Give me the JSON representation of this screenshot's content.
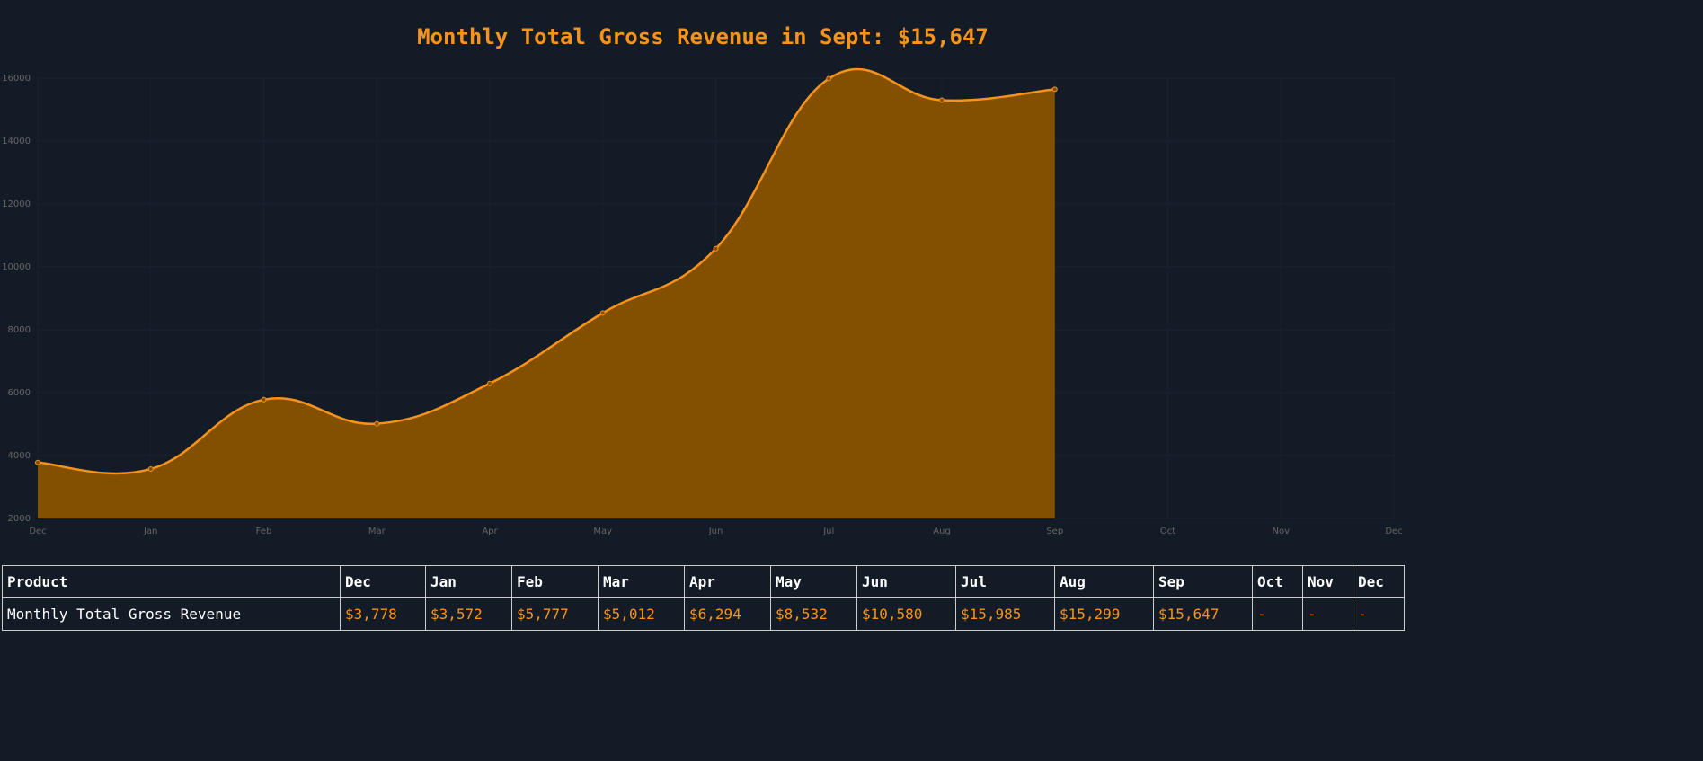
{
  "chart_data": {
    "type": "area",
    "title": "Monthly Total Gross Revenue in Sept: $15,647",
    "categories": [
      "Dec",
      "Jan",
      "Feb",
      "Mar",
      "Apr",
      "May",
      "Jun",
      "Jul",
      "Aug",
      "Sep",
      "Oct",
      "Nov",
      "Dec"
    ],
    "values": [
      3778,
      3572,
      5777,
      5012,
      6294,
      8532,
      10580,
      15985,
      15299,
      15647,
      null,
      null,
      null
    ],
    "color": "#f7931a",
    "fill": "#834f00",
    "ylim": [
      2000,
      16000
    ],
    "yticks": [
      2000,
      4000,
      6000,
      8000,
      10000,
      12000,
      14000,
      16000
    ],
    "grid": true
  },
  "table": {
    "header": [
      "Product",
      "Dec",
      "Jan",
      "Feb",
      "Mar",
      "Apr",
      "May",
      "Jun",
      "Jul",
      "Aug",
      "Sep",
      "Oct",
      "Nov",
      "Dec"
    ],
    "rows": [
      [
        "Monthly Total Gross Revenue",
        "$3,778",
        "$3,572",
        "$5,777",
        "$5,012",
        "$6,294",
        "$8,532",
        "$10,580",
        "$15,985",
        "$15,299",
        "$15,647",
        "-",
        "-",
        "-"
      ]
    ]
  }
}
